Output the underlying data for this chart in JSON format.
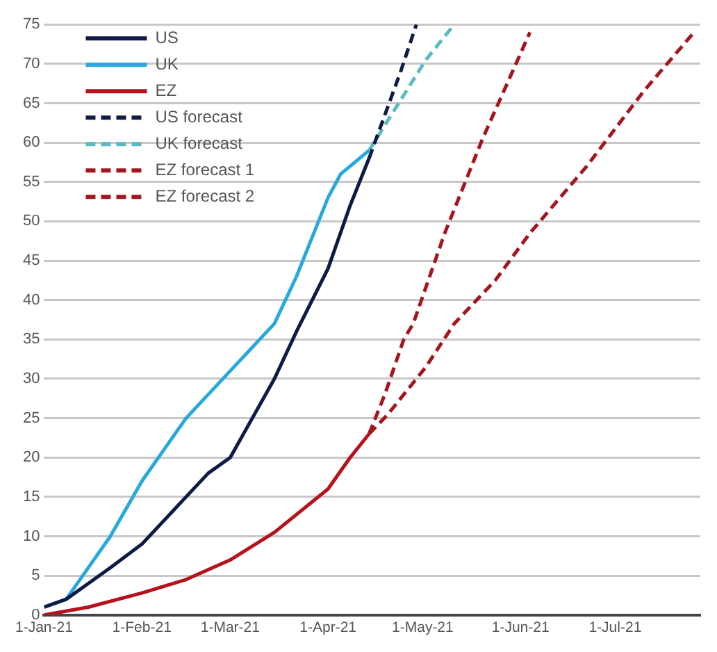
{
  "chart_data": {
    "type": "line",
    "marker": "none",
    "grid": "y",
    "legend": "top left",
    "xlim": [
      "2021-01-01",
      "2021-07-28"
    ],
    "xticks": [
      {
        "value": "2021-01-01",
        "label": "1-Jan-21"
      },
      {
        "value": "2021-02-01",
        "label": "1-Feb-21"
      },
      {
        "value": "2021-03-01",
        "label": "1-Mar-21"
      },
      {
        "value": "2021-04-01",
        "label": "1-Apr-21"
      },
      {
        "value": "2021-05-01",
        "label": "1-May-21"
      },
      {
        "value": "2021-06-01",
        "label": "1-Jun-21"
      },
      {
        "value": "2021-07-01",
        "label": "1-Jul-21"
      }
    ],
    "ylim": [
      0,
      75
    ],
    "yticks": [
      0,
      5,
      10,
      15,
      20,
      25,
      30,
      35,
      40,
      45,
      50,
      55,
      60,
      65,
      70,
      75
    ],
    "series": [
      {
        "name": "US",
        "color": "#0d1b45",
        "line_style": "solid",
        "x": [
          "2021-01-01",
          "2021-01-08",
          "2021-01-15",
          "2021-01-22",
          "2021-02-01",
          "2021-02-08",
          "2021-02-15",
          "2021-02-22",
          "2021-03-01",
          "2021-03-08",
          "2021-03-15",
          "2021-03-22",
          "2021-04-01",
          "2021-04-08",
          "2021-04-14"
        ],
        "values": [
          1,
          2,
          4,
          6,
          9,
          12,
          15,
          18,
          20,
          25,
          30,
          36,
          44,
          52,
          58
        ]
      },
      {
        "name": "UK",
        "color": "#29a8dd",
        "line_style": "solid",
        "x": [
          "2021-01-01",
          "2021-01-08",
          "2021-01-15",
          "2021-01-22",
          "2021-02-01",
          "2021-02-08",
          "2021-02-15",
          "2021-02-22",
          "2021-03-01",
          "2021-03-08",
          "2021-03-15",
          "2021-03-22",
          "2021-03-29",
          "2021-04-01",
          "2021-04-05",
          "2021-04-14"
        ],
        "values": [
          1,
          2,
          6,
          10,
          17,
          21,
          25,
          28,
          31,
          34,
          37,
          43,
          50,
          53,
          56,
          59
        ]
      },
      {
        "name": "EZ",
        "color": "#b5121b",
        "line_style": "solid",
        "x": [
          "2021-01-01",
          "2021-01-15",
          "2021-02-01",
          "2021-02-15",
          "2021-03-01",
          "2021-03-15",
          "2021-04-01",
          "2021-04-08",
          "2021-04-14"
        ],
        "values": [
          0,
          1,
          2.8,
          4.5,
          7,
          10.5,
          16,
          20,
          23
        ]
      },
      {
        "name": "US forecast",
        "color": "#0d1b45",
        "line_style": "dashed",
        "x": [
          "2021-04-14",
          "2021-04-24",
          "2021-04-29"
        ],
        "values": [
          58,
          69,
          75
        ]
      },
      {
        "name": "UK forecast",
        "color": "#5bbcc0",
        "line_style": "dashed",
        "x": [
          "2021-04-14",
          "2021-05-02",
          "2021-05-11"
        ],
        "values": [
          59,
          70.5,
          75
        ]
      },
      {
        "name": "EZ forecast 1",
        "color": "#a4161f",
        "line_style": "dashed",
        "x": [
          "2021-04-14",
          "2021-04-19",
          "2021-04-25",
          "2021-04-28",
          "2021-05-08",
          "2021-05-20",
          "2021-06-04"
        ],
        "values": [
          23,
          28,
          35,
          37,
          48.5,
          60.5,
          74
        ]
      },
      {
        "name": "EZ forecast 2",
        "color": "#a4161f",
        "line_style": "dashed",
        "x": [
          "2021-04-14",
          "2021-04-20",
          "2021-05-02",
          "2021-05-11",
          "2021-05-24",
          "2021-06-04",
          "2021-06-22",
          "2021-07-10",
          "2021-07-26"
        ],
        "values": [
          23,
          25.5,
          31.5,
          37,
          42.5,
          48.5,
          57,
          66.5,
          74
        ]
      }
    ]
  }
}
